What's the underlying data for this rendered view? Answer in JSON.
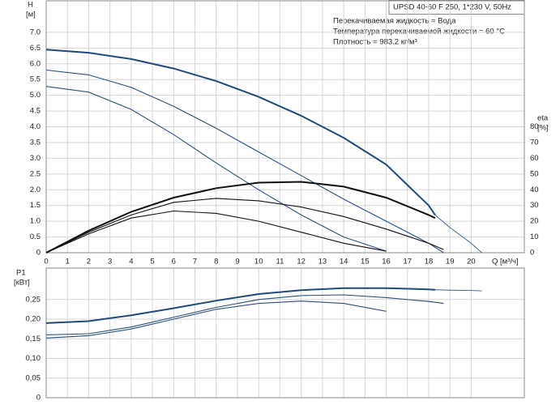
{
  "chart_data": [
    {
      "type": "line",
      "title": "UPSD 40-60 F 250, 1*230 V, 50Hz",
      "annotations": [
        "Перекачиваемая жидкость = Вода",
        "Температура перекачиваемой жидкости = 60 °C",
        "Плотность = 983.2 кг/м³"
      ],
      "y_label": "H",
      "y_unit": "[м]",
      "y2_label": "eta",
      "y2_unit": "[%]",
      "x_label": "Q [м³/ч]",
      "xlim": [
        0,
        22.5
      ],
      "xticks": [
        0,
        1,
        2,
        3,
        4,
        5,
        6,
        7,
        8,
        9,
        10,
        11,
        12,
        13,
        14,
        15,
        16,
        17,
        18,
        19,
        20
      ],
      "ylim": [
        0,
        8
      ],
      "yticks": [
        0,
        0.5,
        {
          "value": 1,
          "label": "1.0"
        },
        1.5,
        {
          "value": 2,
          "label": "2.0"
        },
        2.5,
        {
          "value": 3,
          "label": "3.0"
        },
        3.5,
        {
          "value": 4,
          "label": "4.0"
        },
        4.5,
        {
          "value": 5,
          "label": "5.0"
        },
        5.5,
        {
          "value": 6,
          "label": "6.0"
        },
        6.5,
        {
          "value": 7,
          "label": "7.0"
        }
      ],
      "y2lim": [
        0,
        160
      ],
      "y2ticks": [
        0,
        10,
        20,
        30,
        40,
        50,
        60,
        70,
        80
      ],
      "grid": true,
      "series": [
        {
          "color": "#1f4a7a",
          "x": [
            0,
            2,
            4,
            6,
            8,
            10,
            12,
            14,
            16,
            18,
            18.3
          ],
          "values": [
            6.45,
            6.35,
            6.15,
            5.85,
            5.45,
            4.95,
            4.35,
            3.65,
            2.8,
            1.5,
            1.2
          ]
        },
        {
          "color": "#1f4a7a",
          "x": [
            18.3,
            19,
            20,
            20.5
          ],
          "values": [
            1.2,
            0.8,
            0.3,
            0
          ]
        },
        {
          "color": "#2a4f7c",
          "x": [
            0,
            2,
            4,
            6,
            8,
            10,
            12,
            14,
            16,
            18,
            18.7
          ],
          "values": [
            5.8,
            5.65,
            5.25,
            4.65,
            3.95,
            3.2,
            2.45,
            1.7,
            1.0,
            0.3,
            0
          ]
        },
        {
          "color": "#2a4f7c",
          "x": [
            0,
            2,
            4,
            6,
            8,
            10,
            12,
            14,
            16
          ],
          "values": [
            5.28,
            5.1,
            4.55,
            3.75,
            2.85,
            2.0,
            1.2,
            0.5,
            0.05
          ]
        },
        {
          "color": "#111111",
          "axis": "y2",
          "x": [
            0,
            2,
            4,
            6,
            8,
            10,
            12,
            14,
            16,
            18,
            18.3
          ],
          "values": [
            0,
            14,
            26,
            35,
            41,
            44.5,
            45,
            42,
            35,
            24,
            22
          ]
        },
        {
          "color": "#111111",
          "axis": "y2",
          "x": [
            0,
            2,
            4,
            6,
            8,
            10,
            12,
            14,
            16,
            18,
            18.7
          ],
          "values": [
            0,
            13,
            24,
            32,
            34.5,
            33,
            29,
            23,
            15,
            6,
            2
          ]
        },
        {
          "color": "#111111",
          "axis": "y2",
          "x": [
            0,
            2,
            4,
            6,
            8,
            10,
            12,
            14,
            16
          ],
          "values": [
            0,
            12,
            22,
            26.5,
            25,
            20,
            13,
            6,
            1
          ]
        }
      ]
    },
    {
      "type": "line",
      "y_label": "P1",
      "y_unit": "[кВт]",
      "xlim": [
        0,
        22.5
      ],
      "ylim": [
        0,
        0.33
      ],
      "yticks": [
        0,
        {
          "value": 0.05,
          "label": "0,05"
        },
        {
          "value": 0.1,
          "label": "0,10"
        },
        {
          "value": 0.15,
          "label": "0,15"
        },
        {
          "value": 0.2,
          "label": "0,20"
        },
        {
          "value": 0.25,
          "label": "0,25"
        }
      ],
      "grid": true,
      "series": [
        {
          "color": "#1f4a7a",
          "x": [
            0,
            2,
            4,
            6,
            8,
            10,
            12,
            14,
            16,
            18,
            18.3
          ],
          "values": [
            0.19,
            0.195,
            0.21,
            0.228,
            0.247,
            0.264,
            0.274,
            0.279,
            0.279,
            0.276,
            0.275
          ]
        },
        {
          "color": "#1f4a7a",
          "x": [
            18.3,
            19,
            20,
            20.5
          ],
          "values": [
            0.275,
            0.274,
            0.273,
            0.272
          ]
        },
        {
          "color": "#2a4f7c",
          "x": [
            0,
            2,
            4,
            6,
            8,
            10,
            12,
            14,
            16,
            18,
            18.7
          ],
          "values": [
            0.16,
            0.163,
            0.18,
            0.205,
            0.23,
            0.25,
            0.26,
            0.262,
            0.255,
            0.245,
            0.24
          ]
        },
        {
          "color": "#2a4f7c",
          "x": [
            0,
            2,
            4,
            6,
            8,
            10,
            12,
            14,
            16
          ],
          "values": [
            0.152,
            0.158,
            0.175,
            0.2,
            0.225,
            0.24,
            0.246,
            0.24,
            0.22
          ]
        }
      ]
    }
  ]
}
